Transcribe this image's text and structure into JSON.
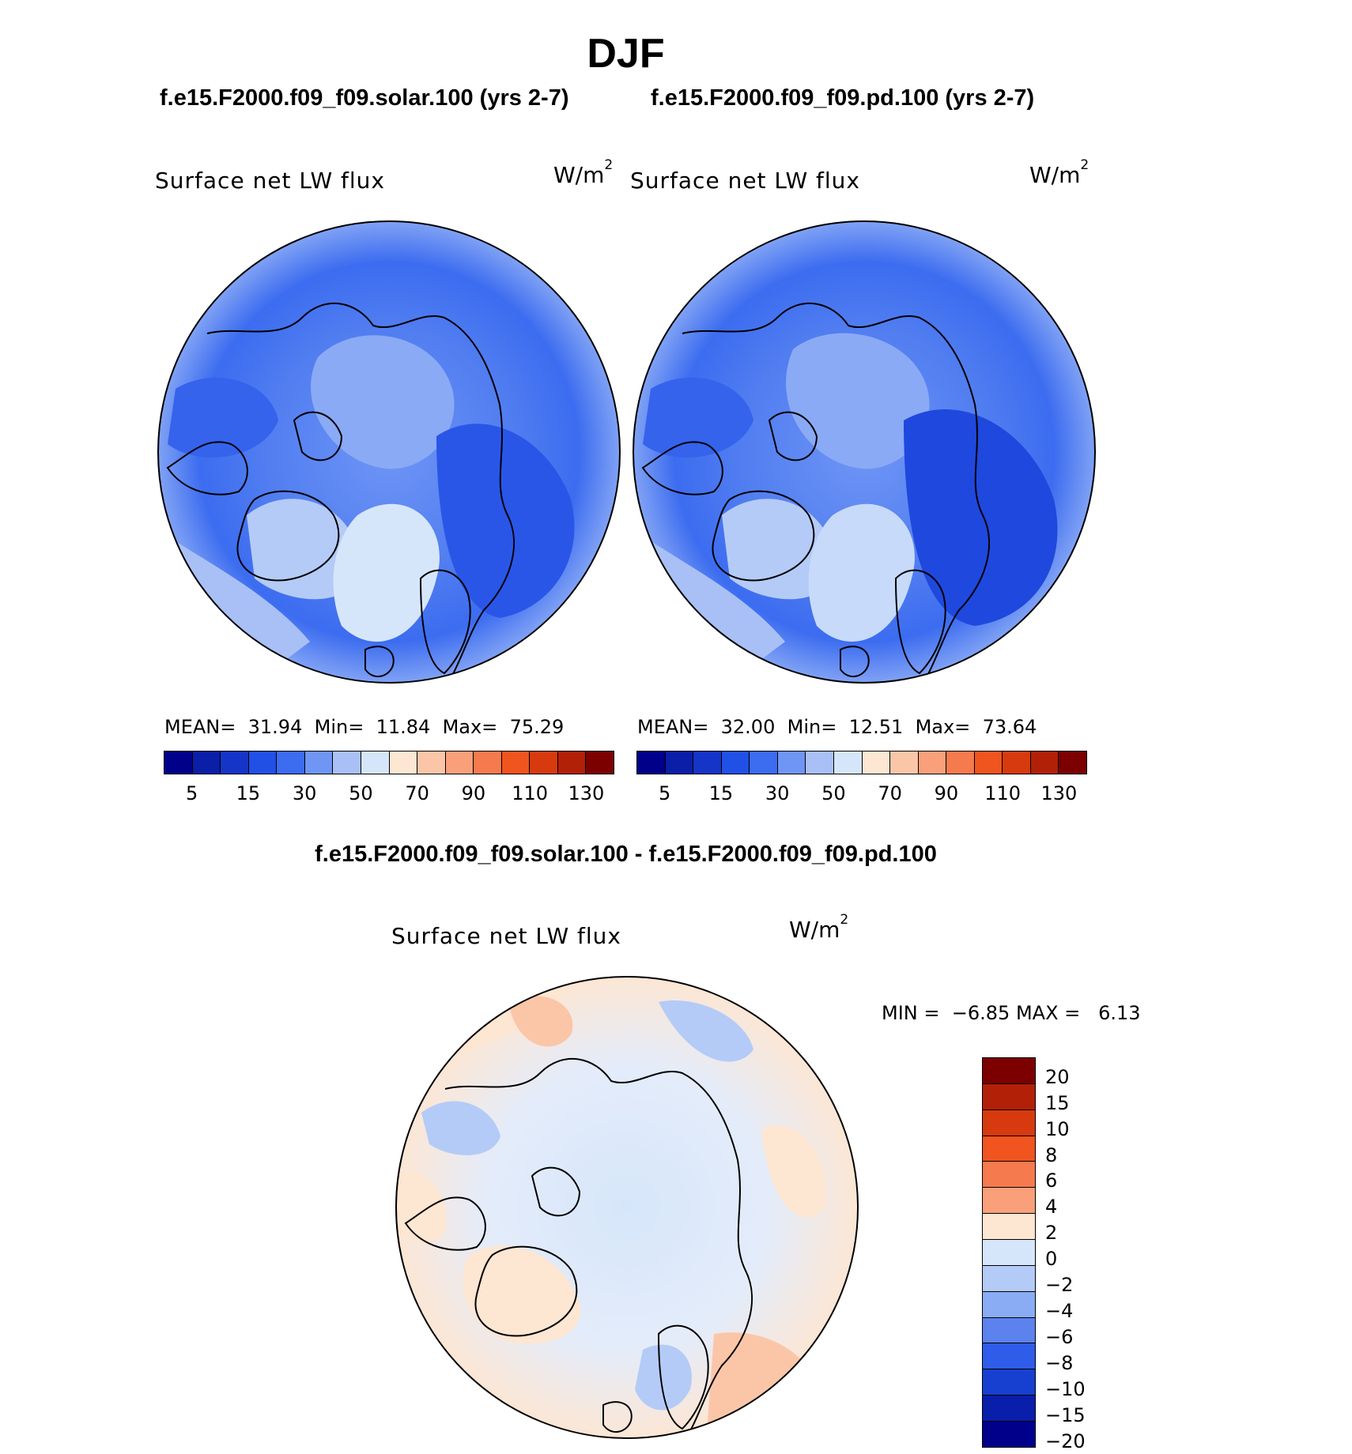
{
  "page": {
    "title": "DJF",
    "case1_title": "f.e15.F2000.f09_f09.solar.100 (yrs 2-7)",
    "case2_title": "f.e15.F2000.f09_f09.pd.100 (yrs 2-7)",
    "diff_title": "f.e15.F2000.f09_f09.solar.100 - f.e15.F2000.f09_f09.pd.100"
  },
  "panels": [
    {
      "label": "Surface net LW flux",
      "unit": "W/m",
      "unit_sup": "2",
      "mean_label": "MEAN=",
      "mean": "31.94",
      "min_label": "Min=",
      "min": "11.84",
      "max_label": "Max=",
      "max": "75.29"
    },
    {
      "label": "Surface net LW flux",
      "unit": "W/m",
      "unit_sup": "2",
      "mean_label": "MEAN=",
      "mean": "32.00",
      "min_label": "Min=",
      "min": "12.51",
      "max_label": "Max=",
      "max": "73.64"
    },
    {
      "label": "Surface net LW flux",
      "unit": "W/m",
      "unit_sup": "2",
      "min_label": "MIN =",
      "min": "−6.85",
      "max_label": "MAX =",
      "max": "6.13"
    }
  ],
  "colorbar_main": {
    "colors": [
      "#00008b",
      "#0a1ea8",
      "#1535c8",
      "#2050e6",
      "#3c6cf0",
      "#6f95f5",
      "#a8c0f6",
      "#d6e6fa",
      "#fde6d2",
      "#fbc6a8",
      "#f9a07a",
      "#f57a4e",
      "#f0541f",
      "#d63a0e",
      "#b32008",
      "#7d0000"
    ],
    "tick_labels": [
      "5",
      "15",
      "30",
      "50",
      "70",
      "90",
      "110",
      "130"
    ]
  },
  "colorbar_diff": {
    "colors": [
      "#7d0000",
      "#b32008",
      "#d63a0e",
      "#f0541f",
      "#f57a4e",
      "#f9a07a",
      "#fde6d2",
      "#d6e6fa",
      "#b4cbf7",
      "#8aacf4",
      "#5c82ee",
      "#2f5ce8",
      "#1840d0",
      "#0a1eac",
      "#00008b"
    ],
    "tick_labels": [
      "20",
      "15",
      "10",
      "8",
      "6",
      "4",
      "2",
      "0",
      "−2",
      "−4",
      "−6",
      "−8",
      "−10",
      "−15",
      "−20"
    ]
  }
}
